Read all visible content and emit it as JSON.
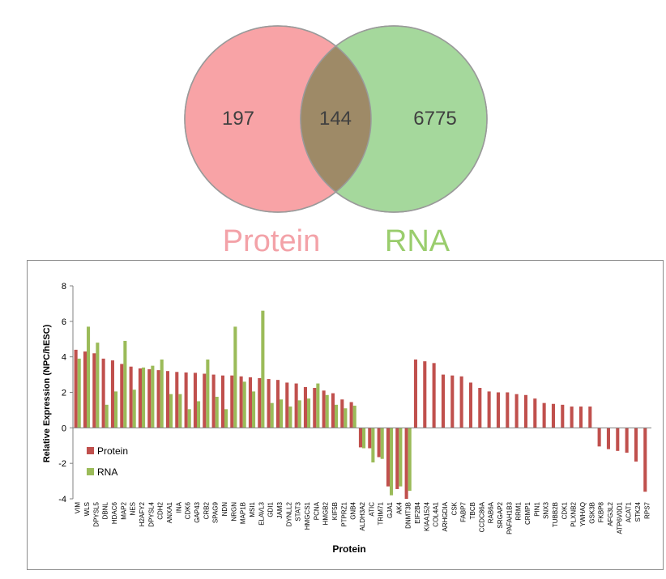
{
  "venn": {
    "left_only": "197",
    "overlap": "144",
    "right_only": "6775",
    "left_label": "Protein",
    "right_label": "RNA",
    "colors": {
      "left": "#f8a3a6",
      "right": "#a5d89c",
      "overlap": "#9e8a67",
      "left_text": "#f3a2a8",
      "right_text": "#9acd6d"
    }
  },
  "chart_data": {
    "type": "bar",
    "xlabel": "Protein",
    "ylabel": "Relative Expression (NPC/hESC)",
    "ylim": [
      -4,
      8
    ],
    "yticks": [
      "-4",
      "-2",
      "0",
      "2",
      "4",
      "6",
      "8"
    ],
    "legend_position": "lower-left",
    "categories": [
      "VIM",
      "WLS",
      "DPYSL5",
      "DBNL",
      "HDAC6",
      "MAP2",
      "NES",
      "H2AFY2",
      "DPYSL4",
      "CDH2",
      "ANXA1",
      "INA",
      "CDK6",
      "GAP43",
      "CRB2",
      "SPAG9",
      "NDN",
      "NRGN",
      "MAP1B",
      "MSI1",
      "ELAVL3",
      "GDI1",
      "JAM3",
      "DYNLL2",
      "STAT3",
      "HMGCS1",
      "PCNA",
      "HMGB2",
      "KIF5B",
      "PTPRZ1",
      "GNB4",
      "ALDH3A2",
      "ATIC",
      "TRIM71",
      "GJA1",
      "AK4",
      "DNMT3B",
      "EIF2B4",
      "KIAA1524",
      "COL4A1",
      "ARHGDIA",
      "CSK",
      "FABP7",
      "TBCB",
      "CCDC86A",
      "RAB6A",
      "SRGAP2",
      "PAFAH1B3",
      "RRM1",
      "CRMP1",
      "PIN1",
      "SNX3",
      "TUBB2B",
      "CDK1",
      "PLXNB2",
      "YWHAQ",
      "GSK3B",
      "FKBP8",
      "AFG3L2",
      "ATP6V0D1",
      "ACAT1",
      "STK24",
      "RPS7"
    ],
    "series": [
      {
        "name": "Protein",
        "color": "#c0504d",
        "values": [
          4.4,
          4.3,
          4.2,
          3.9,
          3.8,
          3.6,
          3.45,
          3.35,
          3.3,
          3.25,
          3.2,
          3.15,
          3.12,
          3.1,
          3.05,
          3.0,
          2.95,
          2.95,
          2.9,
          2.85,
          2.8,
          2.75,
          2.7,
          2.55,
          2.5,
          2.3,
          2.25,
          2.1,
          1.95,
          1.6,
          1.45,
          -1.1,
          -1.15,
          -1.65,
          -3.3,
          -3.45,
          -4.0,
          3.85,
          3.75,
          3.65,
          3.0,
          2.95,
          2.9,
          2.55,
          2.25,
          2.05,
          2.0,
          2.0,
          1.9,
          1.85,
          1.65,
          1.4,
          1.35,
          1.3,
          1.2,
          1.2,
          1.2,
          -1.05,
          -1.2,
          -1.3,
          -1.4,
          -1.9,
          -3.6
        ]
      },
      {
        "name": "RNA",
        "color": "#9bbb59",
        "values": [
          3.9,
          5.7,
          4.8,
          1.3,
          2.05,
          4.9,
          2.15,
          3.4,
          3.5,
          3.85,
          1.9,
          1.9,
          1.05,
          1.5,
          3.85,
          1.75,
          1.05,
          5.7,
          2.6,
          2.05,
          6.6,
          1.4,
          1.6,
          1.2,
          1.55,
          1.65,
          2.5,
          1.85,
          1.3,
          1.1,
          1.25,
          -1.15,
          -1.95,
          -1.75,
          -3.8,
          -3.3,
          -3.55,
          0,
          0,
          0,
          0,
          0,
          0,
          0,
          0,
          0,
          0,
          0,
          0,
          0,
          0,
          0,
          0,
          0,
          0,
          0,
          0,
          0,
          0,
          0,
          0,
          0,
          0
        ]
      }
    ]
  }
}
